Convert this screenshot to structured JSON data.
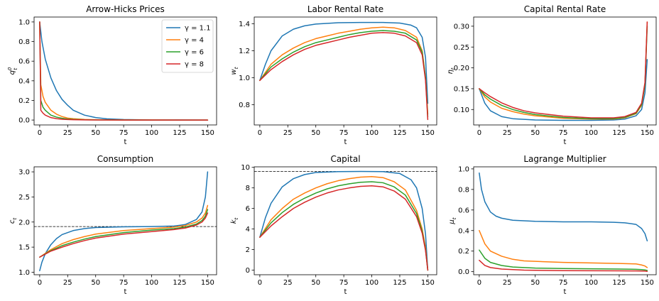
{
  "colors": {
    "series": [
      "#1f77b4",
      "#ff7f0e",
      "#2ca02c",
      "#d62728"
    ],
    "axis": "#000000",
    "background": "#ffffff"
  },
  "legend": {
    "entries": [
      "γ = 1.1",
      "γ = 4",
      "γ = 6",
      "γ = 8"
    ]
  },
  "chart_data": [
    {
      "id": "prices",
      "type": "line",
      "title": "Arrow-Hicks Prices",
      "xlabel": "t",
      "ylabel_base": "q",
      "ylabel_sup": "0",
      "ylabel_sub": "t",
      "xlim": [
        -5,
        158
      ],
      "ylim": [
        -0.05,
        1.05
      ],
      "xticks": [
        0,
        25,
        50,
        75,
        100,
        125,
        150
      ],
      "yticks": [
        0.0,
        0.2,
        0.4,
        0.6,
        0.8,
        1.0
      ],
      "ytick_labels": [
        "0.0",
        "0.2",
        "0.4",
        "0.6",
        "0.8",
        "1.0"
      ],
      "legend": "top-right",
      "series": [
        {
          "name": "γ = 1.1",
          "x": [
            0,
            2,
            5,
            10,
            15,
            20,
            25,
            30,
            40,
            50,
            60,
            75,
            100,
            125,
            150
          ],
          "values": [
            1.0,
            0.8,
            0.62,
            0.43,
            0.3,
            0.21,
            0.15,
            0.1,
            0.05,
            0.025,
            0.012,
            0.005,
            0.001,
            0.0003,
            0.0001
          ]
        },
        {
          "name": "γ = 4",
          "x": [
            0,
            1,
            3,
            5,
            10,
            15,
            20,
            25,
            30,
            40,
            50,
            75,
            100,
            125,
            150
          ],
          "values": [
            1.0,
            0.36,
            0.24,
            0.18,
            0.1,
            0.06,
            0.035,
            0.02,
            0.013,
            0.006,
            0.003,
            0.001,
            0.0003,
            0.0001,
            0.0
          ]
        },
        {
          "name": "γ = 6",
          "x": [
            0,
            1,
            3,
            5,
            10,
            15,
            20,
            25,
            30,
            40,
            50,
            75,
            100,
            125,
            150
          ],
          "values": [
            1.0,
            0.2,
            0.13,
            0.1,
            0.05,
            0.03,
            0.018,
            0.011,
            0.007,
            0.003,
            0.0015,
            0.0003,
            0.0001,
            0.0,
            0.0
          ]
        },
        {
          "name": "γ = 8",
          "x": [
            0,
            1,
            3,
            5,
            10,
            15,
            20,
            25,
            30,
            40,
            50,
            75,
            100,
            125,
            150
          ],
          "values": [
            1.0,
            0.1,
            0.07,
            0.05,
            0.025,
            0.014,
            0.008,
            0.005,
            0.003,
            0.0012,
            0.0006,
            0.0001,
            0.0,
            0.0,
            0.0
          ]
        }
      ]
    },
    {
      "id": "wage",
      "type": "line",
      "title": "Labor Rental Rate",
      "xlabel": "t",
      "ylabel_base": "w",
      "ylabel_sup": "",
      "ylabel_sub": "t",
      "xlim": [
        -5,
        158
      ],
      "ylim": [
        0.65,
        1.45
      ],
      "xticks": [
        0,
        25,
        50,
        75,
        100,
        125,
        150
      ],
      "yticks": [
        0.8,
        1.0,
        1.2,
        1.4
      ],
      "ytick_labels": [
        "0.8",
        "1.0",
        "1.2",
        "1.4"
      ],
      "series": [
        {
          "name": "γ = 1.1",
          "x": [
            0,
            5,
            10,
            20,
            30,
            40,
            50,
            70,
            90,
            110,
            125,
            135,
            140,
            145,
            148,
            150
          ],
          "values": [
            0.98,
            1.1,
            1.2,
            1.31,
            1.36,
            1.385,
            1.398,
            1.408,
            1.41,
            1.41,
            1.405,
            1.39,
            1.37,
            1.3,
            1.15,
            0.81
          ]
        },
        {
          "name": "γ = 4",
          "x": [
            0,
            10,
            20,
            30,
            40,
            50,
            60,
            70,
            80,
            90,
            100,
            110,
            120,
            130,
            140,
            145,
            148,
            150
          ],
          "values": [
            0.98,
            1.1,
            1.17,
            1.22,
            1.26,
            1.29,
            1.31,
            1.33,
            1.345,
            1.36,
            1.37,
            1.375,
            1.37,
            1.35,
            1.3,
            1.2,
            1.0,
            0.73
          ]
        },
        {
          "name": "γ = 6",
          "x": [
            0,
            10,
            20,
            30,
            40,
            50,
            60,
            70,
            80,
            90,
            100,
            110,
            120,
            130,
            140,
            145,
            148,
            150
          ],
          "values": [
            0.98,
            1.08,
            1.14,
            1.19,
            1.23,
            1.26,
            1.28,
            1.3,
            1.32,
            1.335,
            1.345,
            1.35,
            1.345,
            1.33,
            1.28,
            1.19,
            1.0,
            0.71
          ]
        },
        {
          "name": "γ = 8",
          "x": [
            0,
            10,
            20,
            30,
            40,
            50,
            60,
            70,
            80,
            90,
            100,
            110,
            120,
            130,
            140,
            145,
            148,
            150
          ],
          "values": [
            0.98,
            1.06,
            1.12,
            1.17,
            1.21,
            1.24,
            1.26,
            1.28,
            1.3,
            1.315,
            1.33,
            1.335,
            1.33,
            1.31,
            1.26,
            1.17,
            0.98,
            0.69
          ]
        }
      ]
    },
    {
      "id": "rent",
      "type": "line",
      "title": "Capital Rental Rate",
      "xlabel": "t",
      "ylabel_base": "η",
      "ylabel_sup": "",
      "ylabel_sub": "t",
      "xlim": [
        -5,
        158
      ],
      "ylim": [
        0.063,
        0.322
      ],
      "xticks": [
        0,
        25,
        50,
        75,
        100,
        125,
        150
      ],
      "yticks": [
        0.1,
        0.15,
        0.2,
        0.25,
        0.3
      ],
      "ytick_labels": [
        "0.10",
        "0.15",
        "0.20",
        "0.25",
        "0.30"
      ],
      "series": [
        {
          "name": "γ = 1.1",
          "x": [
            0,
            5,
            10,
            20,
            30,
            50,
            75,
            100,
            120,
            130,
            140,
            145,
            148,
            150
          ],
          "values": [
            0.15,
            0.115,
            0.097,
            0.083,
            0.078,
            0.075,
            0.074,
            0.074,
            0.075,
            0.077,
            0.085,
            0.1,
            0.14,
            0.22
          ]
        },
        {
          "name": "γ = 4",
          "x": [
            0,
            5,
            10,
            20,
            30,
            40,
            50,
            75,
            100,
            120,
            130,
            140,
            145,
            148,
            150
          ],
          "values": [
            0.15,
            0.13,
            0.118,
            0.103,
            0.095,
            0.089,
            0.085,
            0.079,
            0.077,
            0.077,
            0.08,
            0.09,
            0.11,
            0.16,
            0.31
          ]
        },
        {
          "name": "γ = 6",
          "x": [
            0,
            5,
            10,
            20,
            30,
            40,
            50,
            75,
            100,
            120,
            130,
            140,
            145,
            148,
            150
          ],
          "values": [
            0.15,
            0.135,
            0.125,
            0.11,
            0.1,
            0.093,
            0.088,
            0.081,
            0.078,
            0.078,
            0.081,
            0.091,
            0.112,
            0.16,
            0.3
          ]
        },
        {
          "name": "γ = 8",
          "x": [
            0,
            5,
            10,
            20,
            30,
            40,
            50,
            75,
            100,
            120,
            130,
            140,
            145,
            148,
            150
          ],
          "values": [
            0.15,
            0.14,
            0.131,
            0.116,
            0.105,
            0.097,
            0.092,
            0.084,
            0.08,
            0.08,
            0.083,
            0.093,
            0.115,
            0.165,
            0.31
          ]
        }
      ]
    },
    {
      "id": "consumption",
      "type": "line",
      "title": "Consumption",
      "xlabel": "t",
      "ylabel_base": "c",
      "ylabel_sup": "",
      "ylabel_sub": "t",
      "xlim": [
        -5,
        158
      ],
      "ylim": [
        0.95,
        3.1
      ],
      "xticks": [
        0,
        25,
        50,
        75,
        100,
        125,
        150
      ],
      "yticks": [
        1.0,
        1.5,
        2.0,
        2.5,
        3.0
      ],
      "ytick_labels": [
        "1.0",
        "1.5",
        "2.0",
        "2.5",
        "3.0"
      ],
      "reference_y": 1.91,
      "series": [
        {
          "name": "γ = 1.1",
          "x": [
            0,
            2,
            5,
            10,
            15,
            20,
            30,
            40,
            50,
            75,
            100,
            120,
            130,
            140,
            145,
            148,
            150
          ],
          "values": [
            1.03,
            1.2,
            1.37,
            1.55,
            1.67,
            1.75,
            1.83,
            1.87,
            1.89,
            1.905,
            1.91,
            1.92,
            1.95,
            2.05,
            2.2,
            2.5,
            3.0
          ]
        },
        {
          "name": "γ = 4",
          "x": [
            0,
            10,
            20,
            30,
            40,
            50,
            75,
            100,
            120,
            130,
            140,
            145,
            148,
            150
          ],
          "values": [
            1.3,
            1.45,
            1.57,
            1.65,
            1.71,
            1.76,
            1.83,
            1.87,
            1.9,
            1.93,
            2.0,
            2.08,
            2.18,
            2.33
          ]
        },
        {
          "name": "γ = 6",
          "x": [
            0,
            10,
            20,
            30,
            40,
            50,
            75,
            100,
            120,
            130,
            140,
            145,
            148,
            150
          ],
          "values": [
            1.3,
            1.43,
            1.53,
            1.6,
            1.66,
            1.71,
            1.79,
            1.84,
            1.87,
            1.9,
            1.96,
            2.03,
            2.12,
            2.25
          ]
        },
        {
          "name": "γ = 8",
          "x": [
            0,
            10,
            20,
            30,
            40,
            50,
            75,
            100,
            120,
            130,
            140,
            145,
            148,
            150
          ],
          "values": [
            1.3,
            1.42,
            1.5,
            1.57,
            1.63,
            1.68,
            1.76,
            1.81,
            1.85,
            1.88,
            1.94,
            2.0,
            2.08,
            2.18
          ]
        }
      ]
    },
    {
      "id": "capital",
      "type": "line",
      "title": "Capital",
      "xlabel": "t",
      "ylabel_base": "k",
      "ylabel_sup": "",
      "ylabel_sub": "t",
      "xlim": [
        -5,
        158
      ],
      "ylim": [
        -0.45,
        10.05
      ],
      "xticks": [
        0,
        25,
        50,
        75,
        100,
        125,
        150
      ],
      "yticks": [
        0,
        2,
        4,
        6,
        8,
        10
      ],
      "ytick_labels": [
        "0",
        "2",
        "4",
        "6",
        "8",
        "10"
      ],
      "reference_y": 9.6,
      "series": [
        {
          "name": "γ = 1.1",
          "x": [
            0,
            5,
            10,
            20,
            30,
            40,
            50,
            70,
            90,
            110,
            125,
            135,
            140,
            145,
            148,
            150
          ],
          "values": [
            3.2,
            5.1,
            6.5,
            8.1,
            8.9,
            9.3,
            9.5,
            9.58,
            9.6,
            9.58,
            9.4,
            8.8,
            8.0,
            6.0,
            3.5,
            0.0
          ]
        },
        {
          "name": "γ = 4",
          "x": [
            0,
            10,
            20,
            30,
            40,
            50,
            60,
            70,
            80,
            90,
            100,
            110,
            120,
            130,
            140,
            145,
            148,
            150
          ],
          "values": [
            3.2,
            4.9,
            6.0,
            6.9,
            7.5,
            8.0,
            8.4,
            8.7,
            8.9,
            9.05,
            9.1,
            9.0,
            8.6,
            7.8,
            5.8,
            4.0,
            2.2,
            0.0
          ]
        },
        {
          "name": "γ = 6",
          "x": [
            0,
            10,
            20,
            30,
            40,
            50,
            60,
            70,
            80,
            90,
            100,
            110,
            120,
            130,
            140,
            145,
            148,
            150
          ],
          "values": [
            3.2,
            4.6,
            5.6,
            6.4,
            7.0,
            7.5,
            7.9,
            8.2,
            8.4,
            8.55,
            8.6,
            8.5,
            8.1,
            7.3,
            5.5,
            3.8,
            2.0,
            0.0
          ]
        },
        {
          "name": "γ = 8",
          "x": [
            0,
            10,
            20,
            30,
            40,
            50,
            60,
            70,
            80,
            90,
            100,
            110,
            120,
            130,
            140,
            145,
            148,
            150
          ],
          "values": [
            3.2,
            4.3,
            5.2,
            6.0,
            6.6,
            7.1,
            7.5,
            7.8,
            8.0,
            8.15,
            8.2,
            8.1,
            7.7,
            6.9,
            5.2,
            3.6,
            1.9,
            0.0
          ]
        }
      ]
    },
    {
      "id": "multiplier",
      "type": "line",
      "title": "Lagrange Multiplier",
      "xlabel": "t",
      "ylabel_base": "μ",
      "ylabel_sup": "",
      "ylabel_sub": "t",
      "xlim": [
        -5,
        158
      ],
      "ylim": [
        -0.03,
        1.02
      ],
      "xticks": [
        0,
        25,
        50,
        75,
        100,
        125,
        150
      ],
      "yticks": [
        0.0,
        0.2,
        0.4,
        0.6,
        0.8,
        1.0
      ],
      "ytick_labels": [
        "0.0",
        "0.2",
        "0.4",
        "0.6",
        "0.8",
        "1.0"
      ],
      "series": [
        {
          "name": "γ = 1.1",
          "x": [
            0,
            2,
            5,
            10,
            15,
            20,
            30,
            40,
            50,
            75,
            100,
            120,
            130,
            140,
            145,
            148,
            150
          ],
          "values": [
            0.96,
            0.8,
            0.68,
            0.58,
            0.54,
            0.52,
            0.5,
            0.495,
            0.49,
            0.485,
            0.485,
            0.48,
            0.475,
            0.46,
            0.42,
            0.37,
            0.3
          ]
        },
        {
          "name": "γ = 4",
          "x": [
            0,
            5,
            10,
            20,
            30,
            40,
            50,
            75,
            100,
            125,
            140,
            145,
            148,
            150
          ],
          "values": [
            0.4,
            0.27,
            0.2,
            0.15,
            0.12,
            0.105,
            0.1,
            0.09,
            0.085,
            0.08,
            0.075,
            0.065,
            0.055,
            0.04
          ]
        },
        {
          "name": "γ = 6",
          "x": [
            0,
            5,
            10,
            20,
            30,
            40,
            50,
            75,
            100,
            125,
            140,
            145,
            148,
            150
          ],
          "values": [
            0.21,
            0.13,
            0.09,
            0.06,
            0.045,
            0.04,
            0.035,
            0.03,
            0.028,
            0.025,
            0.023,
            0.02,
            0.017,
            0.012
          ]
        },
        {
          "name": "γ = 8",
          "x": [
            0,
            5,
            10,
            20,
            30,
            40,
            50,
            75,
            100,
            125,
            140,
            145,
            148,
            150
          ],
          "values": [
            0.11,
            0.06,
            0.04,
            0.025,
            0.02,
            0.015,
            0.013,
            0.01,
            0.009,
            0.008,
            0.007,
            0.006,
            0.005,
            0.003
          ]
        }
      ]
    }
  ]
}
